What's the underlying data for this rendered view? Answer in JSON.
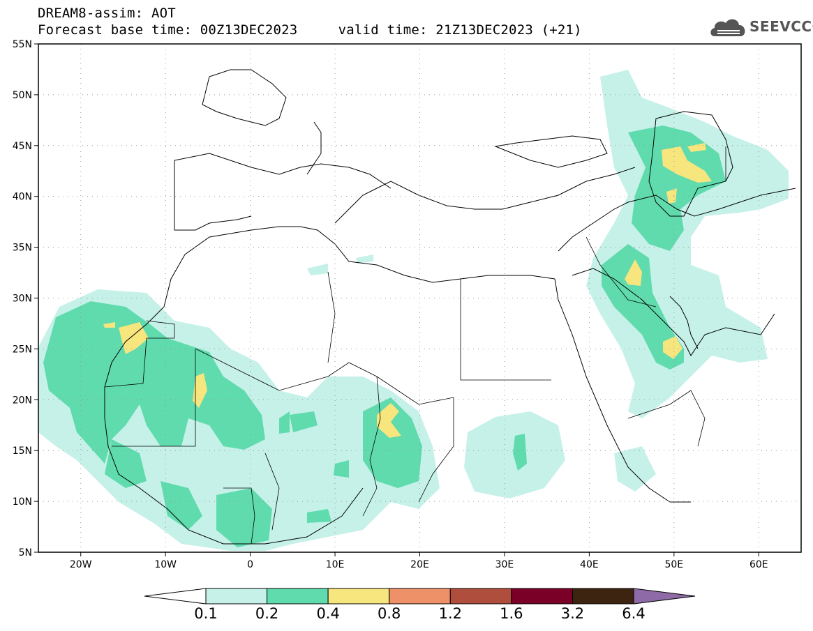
{
  "header": {
    "line1": "DREAM8-assim: AOT",
    "line2": "Forecast base time: 00Z13DEC2023     valid time: 21Z13DEC2023 (+21)"
  },
  "logo": {
    "text": "SEEVCCC",
    "icon": "cloud-icon"
  },
  "map": {
    "projection": "lat-lon",
    "lon_range": [
      -25,
      65
    ],
    "lat_range": [
      5,
      55
    ],
    "grid": "dotted",
    "lon_ticks": [
      {
        "value": -20,
        "label": "20W"
      },
      {
        "value": -10,
        "label": "10W"
      },
      {
        "value": 0,
        "label": "0"
      },
      {
        "value": 10,
        "label": "10E"
      },
      {
        "value": 20,
        "label": "20E"
      },
      {
        "value": 30,
        "label": "30E"
      },
      {
        "value": 40,
        "label": "40E"
      },
      {
        "value": 50,
        "label": "50E"
      },
      {
        "value": 60,
        "label": "60E"
      }
    ],
    "lat_ticks": [
      {
        "value": 5,
        "label": "5N"
      },
      {
        "value": 10,
        "label": "10N"
      },
      {
        "value": 15,
        "label": "15N"
      },
      {
        "value": 20,
        "label": "20N"
      },
      {
        "value": 25,
        "label": "25N"
      },
      {
        "value": 30,
        "label": "30N"
      },
      {
        "value": 35,
        "label": "35N"
      },
      {
        "value": 40,
        "label": "40N"
      },
      {
        "value": 45,
        "label": "45N"
      },
      {
        "value": 50,
        "label": "50N"
      },
      {
        "value": 55,
        "label": "55N"
      }
    ]
  },
  "colorbar": {
    "labels": [
      "0.1",
      "0.2",
      "0.4",
      "0.8",
      "1.2",
      "1.6",
      "3.2",
      "6.4"
    ],
    "colors": [
      "#ffffff",
      "#c6f1e9",
      "#5fdbae",
      "#f7e57e",
      "#ee9068",
      "#b04e3e",
      "#7a0028",
      "#3d2410",
      "#8e6aa6"
    ]
  }
}
